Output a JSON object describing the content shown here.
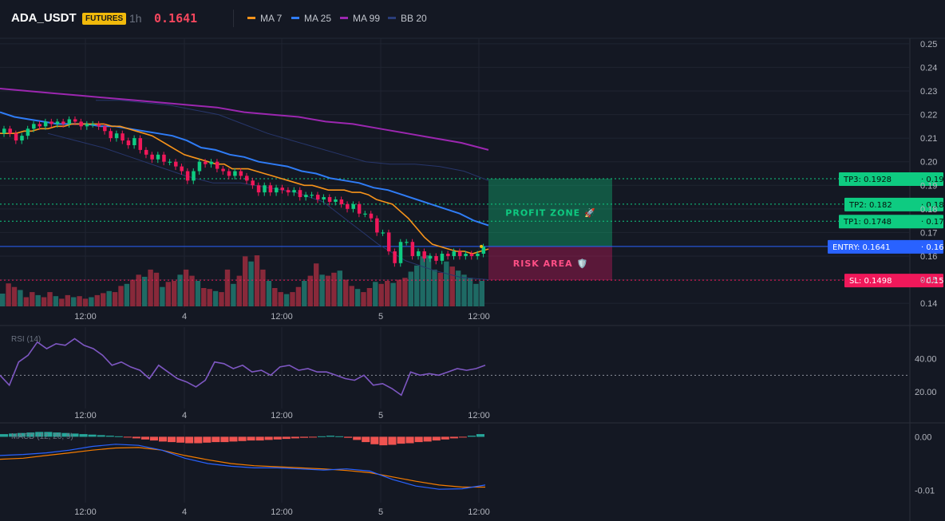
{
  "header": {
    "symbol": "ADA_USDT",
    "badge": "FUTURES",
    "timeframe": "1h",
    "last_price": "0.1641",
    "legend": [
      {
        "label": "MA 7",
        "color": "#f7931a"
      },
      {
        "label": "MA 25",
        "color": "#2f7cf6"
      },
      {
        "label": "MA 99",
        "color": "#9c27b0"
      },
      {
        "label": "BB 20",
        "color": "#2a3d7a"
      }
    ]
  },
  "chart_data": [
    {
      "type": "candlestick",
      "title": "ADA_USDT",
      "ylim": [
        0.138,
        0.253
      ],
      "y_ticks": [
        "0.25",
        "0.24",
        "0.23",
        "0.22",
        "0.21",
        "0.20",
        "0.19",
        "0.18",
        "0.17",
        "0.16",
        "0.15",
        "0.14"
      ],
      "y_tick_values": [
        0.25,
        0.24,
        0.23,
        0.22,
        0.21,
        0.2,
        0.19,
        0.18,
        0.17,
        0.16,
        0.15,
        0.14
      ],
      "x_ticks": [
        "12:00",
        "4",
        "12:00",
        "5",
        "12:00"
      ],
      "candles_close": [
        0.214,
        0.212,
        0.209,
        0.211,
        0.214,
        0.216,
        0.215,
        0.217,
        0.216,
        0.217,
        0.216,
        0.218,
        0.217,
        0.215,
        0.216,
        0.216,
        0.215,
        0.213,
        0.21,
        0.212,
        0.209,
        0.207,
        0.21,
        0.205,
        0.203,
        0.201,
        0.203,
        0.2,
        0.2,
        0.198,
        0.196,
        0.192,
        0.196,
        0.2,
        0.199,
        0.2,
        0.197,
        0.196,
        0.194,
        0.196,
        0.194,
        0.192,
        0.19,
        0.187,
        0.19,
        0.187,
        0.189,
        0.188,
        0.187,
        0.188,
        0.185,
        0.186,
        0.186,
        0.184,
        0.185,
        0.183,
        0.184,
        0.182,
        0.18,
        0.182,
        0.178,
        0.178,
        0.176,
        0.17,
        0.17,
        0.162,
        0.157,
        0.166,
        0.166,
        0.16,
        0.162,
        0.159,
        0.16,
        0.158,
        0.161,
        0.16,
        0.162,
        0.16,
        0.161,
        0.16,
        0.161,
        0.164
      ],
      "ma7": [
        0.212,
        0.212,
        0.212,
        0.213,
        0.213,
        0.214,
        0.214,
        0.215,
        0.215,
        0.216,
        0.216,
        0.216,
        0.216,
        0.216,
        0.215,
        0.215,
        0.214,
        0.213,
        0.212,
        0.211,
        0.209,
        0.207,
        0.205,
        0.203,
        0.202,
        0.201,
        0.2,
        0.199,
        0.199,
        0.197,
        0.197,
        0.197,
        0.196,
        0.195,
        0.194,
        0.193,
        0.192,
        0.191,
        0.19,
        0.19,
        0.189,
        0.188,
        0.188,
        0.188,
        0.187,
        0.187,
        0.186,
        0.184,
        0.183,
        0.182,
        0.179,
        0.176,
        0.172,
        0.168,
        0.165,
        0.164,
        0.163,
        0.162,
        0.162,
        0.161,
        0.162,
        0.163
      ],
      "ma25": [
        0.221,
        0.219,
        0.218,
        0.217,
        0.216,
        0.216,
        0.216,
        0.215,
        0.215,
        0.214,
        0.213,
        0.212,
        0.211,
        0.209,
        0.206,
        0.205,
        0.203,
        0.202,
        0.2,
        0.199,
        0.198,
        0.196,
        0.195,
        0.193,
        0.192,
        0.191,
        0.189,
        0.188,
        0.186,
        0.184,
        0.182,
        0.18,
        0.178,
        0.175,
        0.173
      ],
      "ma99": [
        0.231,
        0.23,
        0.229,
        0.228,
        0.227,
        0.226,
        0.225,
        0.224,
        0.223,
        0.221,
        0.22,
        0.219,
        0.217,
        0.216,
        0.214,
        0.212,
        0.21,
        0.208,
        0.205
      ],
      "bb_upper": [
        0.226,
        0.226,
        0.225,
        0.224,
        0.222,
        0.22,
        0.216,
        0.212,
        0.209,
        0.206,
        0.203,
        0.2,
        0.199,
        0.199,
        0.198,
        0.196,
        0.192
      ],
      "bb_lower": [
        0.212,
        0.209,
        0.206,
        0.202,
        0.198,
        0.194,
        0.191,
        0.191,
        0.189,
        0.187,
        0.183,
        0.174,
        0.165,
        0.158,
        0.154,
        0.151,
        0.15
      ],
      "volume_relative": [
        0.25,
        0.45,
        0.38,
        0.32,
        0.18,
        0.28,
        0.22,
        0.18,
        0.28,
        0.2,
        0.15,
        0.22,
        0.18,
        0.2,
        0.15,
        0.18,
        0.22,
        0.26,
        0.3,
        0.28,
        0.4,
        0.44,
        0.52,
        0.62,
        0.58,
        0.72,
        0.66,
        0.38,
        0.48,
        0.5,
        0.62,
        0.72,
        0.6,
        0.5,
        0.36,
        0.34,
        0.3,
        0.28,
        0.72,
        0.44,
        0.6,
        0.98,
        0.88,
        1.0,
        0.72,
        0.5,
        0.36,
        0.28,
        0.24,
        0.28,
        0.38,
        0.5,
        0.6,
        0.84,
        0.62,
        0.6,
        0.66,
        0.7,
        0.52,
        0.4,
        0.34,
        0.28,
        0.36,
        0.48,
        0.44,
        0.5,
        0.46,
        0.52,
        0.56,
        0.68,
        0.8,
        0.98,
        1.0,
        0.72,
        0.66,
        0.88,
        0.78,
        0.7,
        0.62,
        0.56,
        0.44,
        0.5
      ],
      "levels": [
        {
          "label": "TP3: 0.1928",
          "axis": "0.19",
          "value": 0.1928,
          "color": "#0ecb81"
        },
        {
          "label": "TP2: 0.182",
          "axis": "0.18",
          "value": 0.182,
          "color": "#0ecb81"
        },
        {
          "label": "TP1: 0.1748",
          "axis": "0.17",
          "value": 0.1748,
          "color": "#0ecb81"
        },
        {
          "label": "ENTRY: 0.1641",
          "axis": "0.16",
          "value": 0.1641,
          "color": "#2962ff"
        },
        {
          "label": "SL: 0.1498",
          "axis": "0.15",
          "value": 0.1498,
          "color": "#f0185a"
        }
      ],
      "zones": [
        {
          "label": "PROFIT ZONE 🚀",
          "from": 0.1641,
          "to": 0.1928,
          "color": "#0ecb81"
        },
        {
          "label": "RISK AREA 🛡️",
          "from": 0.1498,
          "to": 0.1641,
          "color": "#c2185b"
        }
      ]
    },
    {
      "type": "line",
      "title": "RSI (14)",
      "ylim": [
        10,
        58
      ],
      "y_ticks": [
        "40.00",
        "20.00"
      ],
      "y_tick_values": [
        40,
        20
      ],
      "reference_line": 30,
      "x_ticks": [
        "12:00",
        "4",
        "12:00",
        "5",
        "12:00"
      ],
      "values": [
        30,
        24,
        38,
        42,
        50,
        46,
        49,
        48,
        52,
        48,
        46,
        42,
        36,
        38,
        35,
        33,
        28,
        36,
        32,
        28,
        26,
        23,
        27,
        38,
        37,
        34,
        36,
        32,
        33,
        30,
        35,
        36,
        33,
        34,
        32,
        32,
        30,
        28,
        27,
        30,
        24,
        25,
        22,
        18,
        32,
        30,
        31,
        30,
        32,
        34,
        33,
        34,
        36
      ]
    },
    {
      "type": "histogram+line",
      "title": "MACD (12, 26, 9)",
      "ylim": [
        -0.012,
        0.002
      ],
      "y_ticks": [
        "0.00",
        "-0.01"
      ],
      "y_tick_values": [
        0,
        -0.01
      ],
      "x_ticks": [
        "12:00",
        "4",
        "12:00",
        "5",
        "12:00"
      ],
      "histogram": [
        0.0005,
        0.0006,
        0.0007,
        0.0008,
        0.0009,
        0.0009,
        0.0008,
        0.0007,
        0.0006,
        0.0005,
        0.0004,
        0.0003,
        0.0002,
        0.0001,
        -0.0001,
        -0.0003,
        -0.0005,
        -0.0007,
        -0.0009,
        -0.001,
        -0.0011,
        -0.0012,
        -0.0012,
        -0.0011,
        -0.001,
        -0.001,
        -0.0009,
        -0.0008,
        -0.0007,
        -0.0007,
        -0.0006,
        -0.0005,
        -0.0004,
        -0.0003,
        -0.0002,
        -0.0001,
        0.0001,
        0.0002,
        0.0001,
        -0.0002,
        -0.0006,
        -0.001,
        -0.0014,
        -0.0016,
        -0.0015,
        -0.0013,
        -0.0012,
        -0.001,
        -0.0009,
        -0.0007,
        -0.0005,
        -0.0003,
        -0.0001,
        0.0002,
        0.0005
      ],
      "macd": [
        -0.0035,
        -0.0033,
        -0.003,
        -0.0025,
        -0.0018,
        -0.0014,
        -0.0016,
        -0.0025,
        -0.004,
        -0.005,
        -0.0055,
        -0.0058,
        -0.0058,
        -0.006,
        -0.0062,
        -0.006,
        -0.0064,
        -0.008,
        -0.0092,
        -0.0098,
        -0.0097,
        -0.009
      ],
      "signal": [
        -0.0042,
        -0.004,
        -0.0035,
        -0.003,
        -0.0025,
        -0.0021,
        -0.002,
        -0.0025,
        -0.0035,
        -0.0043,
        -0.005,
        -0.0054,
        -0.0056,
        -0.0058,
        -0.006,
        -0.0063,
        -0.0067,
        -0.0075,
        -0.0083,
        -0.009,
        -0.0094,
        -0.0094
      ]
    }
  ]
}
